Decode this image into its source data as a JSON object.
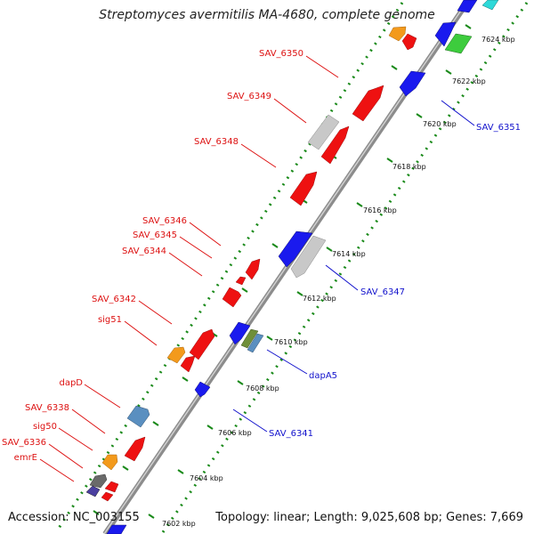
{
  "title": "Streptomyces avermitilis MA-4680, complete genome",
  "footer": {
    "accession": "Accession: NC_003155",
    "topology": "Topology: linear; Length: 9,025,608 bp; Genes: 7,669"
  },
  "colors": {
    "backbone": "#9a9a9a",
    "tick": "#1a8a1a",
    "label_forward": "#dd1111",
    "label_reverse": "#1111cc",
    "red": "#ee1111",
    "blue": "#1a1aee",
    "grey": "#c8c8c8",
    "orange": "#f39a1c",
    "steelblue": "#5a8fc0",
    "green": "#3dcc3d",
    "cyan": "#2ed8d8",
    "olive": "#6f8f3a",
    "slate": "#6a6a6a",
    "navy": "#4a3fa0"
  },
  "kbp_labels": [
    "7602 kbp",
    "7604 kbp",
    "7606 kbp",
    "7608 kbp",
    "7610 kbp",
    "7612 kbp",
    "7614 kbp",
    "7616 kbp",
    "7618 kbp",
    "7620 kbp",
    "7622 kbp",
    "7624 kbp"
  ],
  "forward_labels": [
    "SAV_6350",
    "SAV_6349",
    "SAV_6348",
    "SAV_6346",
    "SAV_6345",
    "SAV_6344",
    "SAV_6342",
    "sig51",
    "dapD",
    "SAV_6338",
    "sig50",
    "SAV_6336",
    "emrE"
  ],
  "reverse_labels": [
    "SAV_6351",
    "SAV_6347",
    "dapA5",
    "SAV_6341"
  ]
}
